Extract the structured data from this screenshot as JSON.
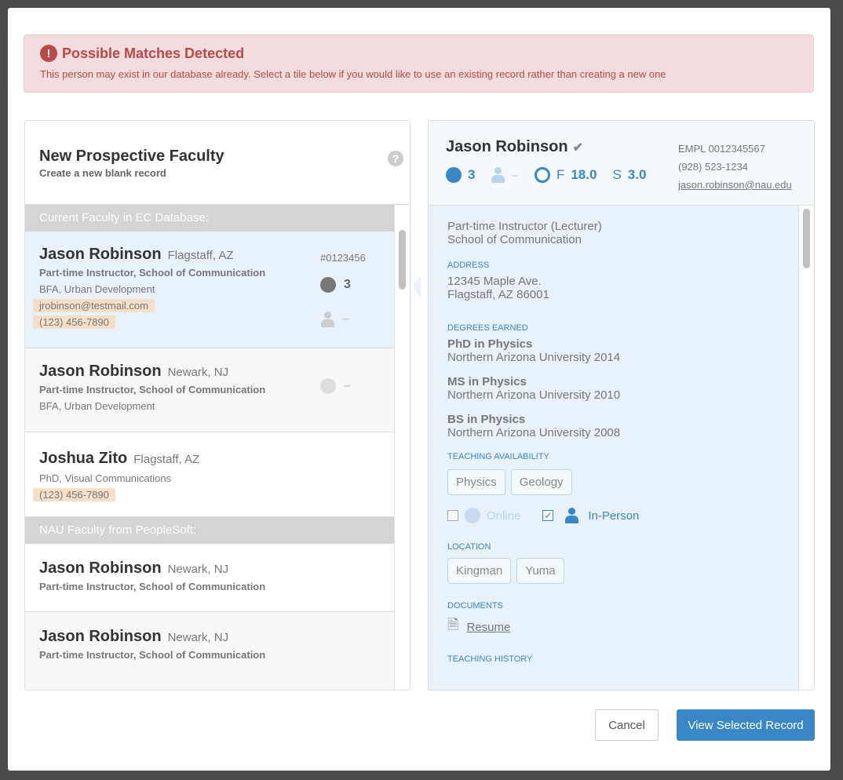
{
  "alert": {
    "icon": "exclamation-circle-icon",
    "title": "Possible Matches Detected",
    "message": "This person may exist in our database already. Select a tile below if you would like to use an existing record rather than creating a new one"
  },
  "new_record": {
    "title": "New Prospective Faculty",
    "subtitle": "Create a new blank record",
    "help": "?"
  },
  "sections": [
    {
      "label": "Current Faculty in EC Database:",
      "items": [
        {
          "name": "Jason Robinson",
          "location": "Flagstaff, AZ",
          "role": "Part-time Instructor, School of Communication",
          "degree": "BFA, Urban Development",
          "email": "jrobinson@testmail.com",
          "phone": "(123) 456-7890",
          "id": "#0123456",
          "online": "3",
          "inperson": "–"
        },
        {
          "name": "Jason Robinson",
          "location": "Newark, NJ",
          "role": "Part-time Instructor, School of Communication",
          "degree": "BFA, Urban Development",
          "online": "–"
        },
        {
          "name": "Joshua Zito",
          "location": "Flagstaff, AZ",
          "degree": "PhD, Visual Communications",
          "phone": "(123) 456-7890"
        }
      ]
    },
    {
      "label": "NAU Faculty from PeopleSoft:",
      "items": [
        {
          "name": "Jason Robinson",
          "location": "Newark, NJ",
          "role": "Part-time Instructor, School of Communication"
        },
        {
          "name": "Jason Robinson",
          "location": "Newark, NJ",
          "role": "Part-time Instructor, School of Communication"
        }
      ]
    }
  ],
  "detail": {
    "name": "Jason Robinson",
    "online": "3",
    "inperson": "–",
    "fall_label": "F",
    "fall": "18.0",
    "spring_label": "S",
    "spring": "3.0",
    "empl": "EMPL 0012345567",
    "phone": "(928) 523-1234",
    "email": "jason.robinson@nau.edu",
    "title": "Part-time Instructor (Lecturer)",
    "dept": "School of Communication",
    "address_label": "Address",
    "address1": "12345 Maple Ave.",
    "address2": "Flagstaff, AZ 86001",
    "degrees_label": "Degrees Earned",
    "degrees": [
      {
        "deg": "PhD in Physics",
        "school": "Northern Arizona University 2014"
      },
      {
        "deg": "MS in Physics",
        "school": "Northern Arizona University 2010"
      },
      {
        "deg": "BS in Physics",
        "school": "Northern Arizona University 2008"
      }
    ],
    "availability_label": "Teaching Availability",
    "subjects": [
      "Physics",
      "Geology"
    ],
    "online_label": "Online",
    "online_checked": false,
    "inperson_label": "In-Person",
    "inperson_checked": true,
    "location_label": "Location",
    "locations": [
      "Kingman",
      "Yuma"
    ],
    "documents_label": "Documents",
    "document": "Resume",
    "history_label": "Teaching History"
  },
  "buttons": {
    "cancel": "Cancel",
    "view": "View Selected Record"
  },
  "colors": {
    "accent": "#3a87c8",
    "alert": "#b94a48",
    "highlight": "#f5dfc8"
  }
}
